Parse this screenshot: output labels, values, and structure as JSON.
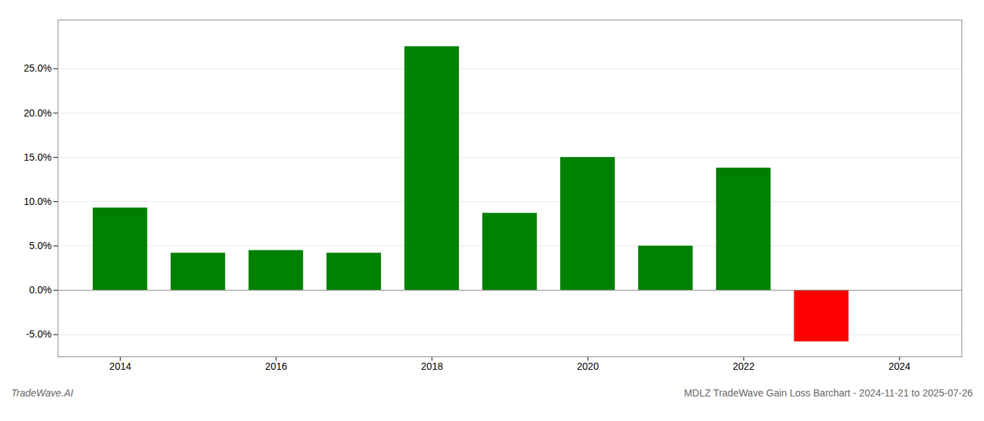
{
  "chart_data": {
    "type": "bar",
    "x": [
      2014,
      2015,
      2016,
      2017,
      2018,
      2019,
      2020,
      2021,
      2022,
      2023
    ],
    "values": [
      0.093,
      0.042,
      0.045,
      0.042,
      0.275,
      0.087,
      0.15,
      0.05,
      0.138,
      -0.058
    ],
    "colors": [
      "#008000",
      "#008000",
      "#008000",
      "#008000",
      "#008000",
      "#008000",
      "#008000",
      "#008000",
      "#008000",
      "#ff0000"
    ],
    "xlim": [
      2013.2,
      2024.8
    ],
    "xticks": [
      2014,
      2016,
      2018,
      2020,
      2022,
      2024
    ],
    "ylim": [
      -0.075,
      0.305
    ],
    "yticks": [
      {
        "value": -0.05,
        "label": "-5.0%"
      },
      {
        "value": 0.0,
        "label": "0.0%"
      },
      {
        "value": 0.05,
        "label": "5.0%"
      },
      {
        "value": 0.1,
        "label": "10.0%"
      },
      {
        "value": 0.15,
        "label": "15.0%"
      },
      {
        "value": 0.2,
        "label": "20.0%"
      },
      {
        "value": 0.25,
        "label": "25.0%"
      }
    ],
    "grid": true,
    "annotations": [
      "TradeWave.AI",
      "MDLZ TradeWave Gain Loss Barchart - 2024-11-21 to 2025-07-26"
    ]
  }
}
